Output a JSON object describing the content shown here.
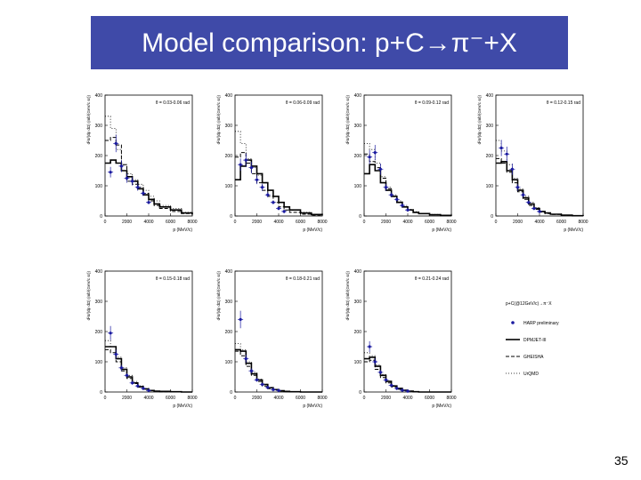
{
  "slide": {
    "title": "Model comparison: p+C→π⁻+X",
    "page_number": "35"
  },
  "colors": {
    "title_bg": "#3f4aa8",
    "title_text": "#ffffff",
    "data_points": "#1a1aa0",
    "lines": "#000000"
  },
  "legend": {
    "header": "p+C(@12GeV/c)→π⁻X",
    "entries": [
      {
        "label": "HARP preliminary",
        "style": "points"
      },
      {
        "label": "DPMJET-III",
        "style": "solid"
      },
      {
        "label": "GHEISHA",
        "style": "dashed"
      },
      {
        "label": "UrQMD",
        "style": "dotted"
      }
    ]
  },
  "chart_data": [
    {
      "type": "line",
      "panel": 1,
      "annotation": "θ = 0.03-0.06 rad",
      "xlabel": "p (MeV/c)",
      "ylabel": "d²σ/(dp dΩ) (mb/(GeV/c sr))",
      "xlim": [
        0,
        8000
      ],
      "ylim": [
        0,
        400
      ],
      "xticks": [
        0,
        2000,
        4000,
        6000,
        8000
      ],
      "yticks": [
        0,
        100,
        200,
        300,
        400
      ],
      "data_points": {
        "x": [
          500,
          1000,
          1500,
          2000,
          2500,
          3000,
          3500,
          4000
        ],
        "y": [
          145,
          240,
          165,
          125,
          115,
          95,
          75,
          45
        ]
      },
      "series": [
        {
          "name": "DPMJET-III",
          "x": [
            0,
            500,
            1000,
            1500,
            2000,
            2500,
            3000,
            3500,
            4000,
            4500,
            5000,
            6000,
            7000,
            8000
          ],
          "y": [
            175,
            185,
            175,
            150,
            130,
            115,
            90,
            70,
            55,
            40,
            30,
            20,
            10,
            5
          ]
        },
        {
          "name": "GHEISHA",
          "x": [
            0,
            500,
            1000,
            1500,
            2000,
            2500,
            3000,
            3500,
            4000,
            4500,
            5000,
            6000,
            7000,
            8000
          ],
          "y": [
            250,
            260,
            235,
            170,
            115,
            105,
            95,
            75,
            50,
            35,
            25,
            15,
            8,
            3
          ]
        },
        {
          "name": "UrQMD",
          "x": [
            0,
            500,
            1000,
            1500,
            2000,
            2500,
            3000,
            3500,
            4000,
            4500,
            5000,
            6000,
            7000,
            8000
          ],
          "y": [
            330,
            290,
            220,
            170,
            140,
            120,
            105,
            85,
            65,
            50,
            35,
            25,
            12,
            5
          ]
        }
      ]
    },
    {
      "type": "line",
      "panel": 2,
      "annotation": "θ = 0.06-0.09 rad",
      "xlabel": "p (MeV/c)",
      "ylabel": "d²σ/(dp dΩ) (mb/(GeV/c sr))",
      "xlim": [
        0,
        8000
      ],
      "ylim": [
        0,
        400
      ],
      "xticks": [
        0,
        2000,
        4000,
        6000,
        8000
      ],
      "yticks": [
        0,
        100,
        200,
        300,
        400
      ],
      "data_points": {
        "x": [
          500,
          1000,
          1500,
          2000,
          2500,
          3000,
          3500,
          4000,
          4500
        ],
        "y": [
          170,
          185,
          160,
          120,
          95,
          70,
          45,
          25,
          15
        ]
      },
      "series": [
        {
          "name": "DPMJET-III",
          "x": [
            0,
            500,
            1000,
            1500,
            2000,
            2500,
            3000,
            3500,
            4000,
            4500,
            5000,
            6000,
            7000,
            8000
          ],
          "y": [
            120,
            165,
            185,
            165,
            140,
            110,
            85,
            65,
            45,
            30,
            20,
            10,
            5,
            2
          ]
        },
        {
          "name": "GHEISHA",
          "x": [
            0,
            500,
            1000,
            1500,
            2000,
            2500,
            3000,
            3500,
            4000,
            4500,
            5000,
            6000,
            7000,
            8000
          ],
          "y": [
            195,
            210,
            175,
            140,
            110,
            85,
            65,
            45,
            30,
            20,
            12,
            6,
            3,
            1
          ]
        },
        {
          "name": "UrQMD",
          "x": [
            0,
            500,
            1000,
            1500,
            2000,
            2500,
            3000,
            3500,
            4000,
            4500,
            5000,
            6000,
            7000,
            8000
          ],
          "y": [
            280,
            240,
            190,
            160,
            135,
            110,
            85,
            65,
            45,
            30,
            20,
            12,
            6,
            2
          ]
        }
      ]
    },
    {
      "type": "line",
      "panel": 3,
      "annotation": "θ = 0.09-0.12 rad",
      "xlabel": "p (MeV/c)",
      "ylabel": "d²σ/(dp dΩ) (mb/(GeV/c sr))",
      "xlim": [
        0,
        8000
      ],
      "ylim": [
        0,
        400
      ],
      "xticks": [
        0,
        2000,
        4000,
        6000,
        8000
      ],
      "yticks": [
        0,
        100,
        200,
        300,
        400
      ],
      "data_points": {
        "x": [
          500,
          1000,
          1500,
          2000,
          2500,
          3000,
          3500,
          4000
        ],
        "y": [
          195,
          210,
          155,
          95,
          70,
          55,
          35,
          20
        ]
      },
      "series": [
        {
          "name": "DPMJET-III",
          "x": [
            0,
            500,
            1000,
            1500,
            2000,
            2500,
            3000,
            3500,
            4000,
            4500,
            5000,
            6000,
            7000,
            8000
          ],
          "y": [
            140,
            170,
            150,
            110,
            85,
            65,
            45,
            30,
            20,
            12,
            8,
            4,
            2,
            1
          ]
        },
        {
          "name": "GHEISHA",
          "x": [
            0,
            500,
            1000,
            1500,
            2000,
            2500,
            3000,
            3500,
            4000,
            4500,
            5000,
            6000,
            7000,
            8000
          ],
          "y": [
            205,
            180,
            160,
            125,
            90,
            65,
            45,
            30,
            20,
            12,
            8,
            4,
            2,
            1
          ]
        },
        {
          "name": "UrQMD",
          "x": [
            0,
            500,
            1000,
            1500,
            2000,
            2500,
            3000,
            3500,
            4000,
            4500,
            5000,
            6000,
            7000,
            8000
          ],
          "y": [
            240,
            220,
            175,
            130,
            95,
            70,
            50,
            35,
            22,
            14,
            9,
            5,
            2,
            1
          ]
        }
      ]
    },
    {
      "type": "line",
      "panel": 4,
      "annotation": "θ = 0.12-0.15 rad",
      "xlabel": "p (MeV/c)",
      "ylabel": "d²σ/(dp dΩ) (mb/(GeV/c sr))",
      "xlim": [
        0,
        8000
      ],
      "ylim": [
        0,
        400
      ],
      "xticks": [
        0,
        2000,
        4000,
        6000,
        8000
      ],
      "yticks": [
        0,
        100,
        200,
        300,
        400
      ],
      "data_points": {
        "x": [
          500,
          1000,
          1500,
          2000,
          2500,
          3000,
          3500,
          4000
        ],
        "y": [
          225,
          205,
          155,
          95,
          70,
          45,
          25,
          15
        ]
      },
      "series": [
        {
          "name": "DPMJET-III",
          "x": [
            0,
            500,
            1000,
            1500,
            2000,
            2500,
            3000,
            3500,
            4000,
            4500,
            5000,
            6000,
            7000,
            8000
          ],
          "y": [
            175,
            180,
            150,
            120,
            85,
            60,
            40,
            25,
            15,
            10,
            6,
            3,
            1,
            0
          ]
        },
        {
          "name": "GHEISHA",
          "x": [
            0,
            500,
            1000,
            1500,
            2000,
            2500,
            3000,
            3500,
            4000,
            4500,
            5000,
            6000,
            7000,
            8000
          ],
          "y": [
            190,
            175,
            145,
            110,
            80,
            55,
            35,
            22,
            13,
            8,
            5,
            2,
            1,
            0
          ]
        },
        {
          "name": "UrQMD",
          "x": [
            0,
            500,
            1000,
            1500,
            2000,
            2500,
            3000,
            3500,
            4000,
            4500,
            5000,
            6000,
            7000,
            8000
          ],
          "y": [
            250,
            215,
            170,
            125,
            90,
            65,
            45,
            28,
            16,
            10,
            6,
            3,
            1,
            0
          ]
        }
      ]
    },
    {
      "type": "line",
      "panel": 5,
      "annotation": "θ = 0.15-0.18 rad",
      "xlabel": "p (MeV/c)",
      "ylabel": "d²σ/(dp dΩ) (mb/(GeV/c sr))",
      "xlim": [
        0,
        8000
      ],
      "ylim": [
        0,
        400
      ],
      "xticks": [
        0,
        2000,
        4000,
        6000,
        8000
      ],
      "yticks": [
        0,
        100,
        200,
        300,
        400
      ],
      "data_points": {
        "x": [
          500,
          1000,
          1500,
          2000,
          2500,
          3000,
          3500,
          4000
        ],
        "y": [
          195,
          125,
          80,
          55,
          30,
          20,
          12,
          5
        ]
      },
      "series": [
        {
          "name": "DPMJET-III",
          "x": [
            0,
            500,
            1000,
            1500,
            2000,
            2500,
            3000,
            3500,
            4000,
            4500,
            5000,
            6000,
            7000,
            8000
          ],
          "y": [
            150,
            150,
            110,
            75,
            50,
            30,
            18,
            10,
            5,
            3,
            2,
            1,
            0,
            0
          ]
        },
        {
          "name": "GHEISHA",
          "x": [
            0,
            500,
            1000,
            1500,
            2000,
            2500,
            3000,
            3500,
            4000,
            4500,
            5000,
            6000,
            7000,
            8000
          ],
          "y": [
            140,
            130,
            100,
            70,
            45,
            28,
            16,
            9,
            5,
            3,
            1,
            0,
            0,
            0
          ]
        },
        {
          "name": "UrQMD",
          "x": [
            0,
            500,
            1000,
            1500,
            2000,
            2500,
            3000,
            3500,
            4000,
            4500,
            5000,
            6000,
            7000,
            8000
          ],
          "y": [
            170,
            150,
            115,
            80,
            55,
            35,
            20,
            12,
            6,
            3,
            2,
            1,
            0,
            0
          ]
        }
      ]
    },
    {
      "type": "line",
      "panel": 6,
      "annotation": "θ = 0.18-0.21 rad",
      "xlabel": "p (MeV/c)",
      "ylabel": "d²σ/(dp dΩ) (mb/(GeV/c sr))",
      "xlim": [
        0,
        8000
      ],
      "ylim": [
        0,
        400
      ],
      "xticks": [
        0,
        2000,
        4000,
        6000,
        8000
      ],
      "yticks": [
        0,
        100,
        200,
        300,
        400
      ],
      "data_points": {
        "x": [
          500,
          1000,
          1500,
          2000,
          2500,
          3000,
          3500,
          4000
        ],
        "y": [
          240,
          110,
          70,
          40,
          25,
          15,
          8,
          5
        ]
      },
      "series": [
        {
          "name": "DPMJET-III",
          "x": [
            0,
            500,
            1000,
            1500,
            2000,
            2500,
            3000,
            3500,
            4000,
            4500,
            5000,
            6000,
            7000,
            8000
          ],
          "y": [
            140,
            135,
            95,
            60,
            40,
            25,
            14,
            8,
            4,
            2,
            1,
            0,
            0,
            0
          ]
        },
        {
          "name": "GHEISHA",
          "x": [
            0,
            500,
            1000,
            1500,
            2000,
            2500,
            3000,
            3500,
            4000,
            4500,
            5000,
            6000,
            7000,
            8000
          ],
          "y": [
            135,
            120,
            85,
            55,
            35,
            20,
            11,
            6,
            3,
            1,
            0,
            0,
            0,
            0
          ]
        },
        {
          "name": "UrQMD",
          "x": [
            0,
            500,
            1000,
            1500,
            2000,
            2500,
            3000,
            3500,
            4000,
            4500,
            5000,
            6000,
            7000,
            8000
          ],
          "y": [
            160,
            140,
            100,
            65,
            42,
            26,
            15,
            8,
            4,
            2,
            1,
            0,
            0,
            0
          ]
        }
      ]
    },
    {
      "type": "line",
      "panel": 7,
      "annotation": "θ = 0.21-0.24 rad",
      "xlabel": "p (MeV/c)",
      "ylabel": "d²σ/(dp dΩ) (mb/(GeV/c sr))",
      "xlim": [
        0,
        8000
      ],
      "ylim": [
        0,
        400
      ],
      "xticks": [
        0,
        2000,
        4000,
        6000,
        8000
      ],
      "yticks": [
        0,
        100,
        200,
        300,
        400
      ],
      "data_points": {
        "x": [
          500,
          1000,
          1500,
          2000,
          2500,
          3000,
          3500,
          4000
        ],
        "y": [
          150,
          100,
          65,
          40,
          22,
          12,
          6,
          3
        ]
      },
      "series": [
        {
          "name": "DPMJET-III",
          "x": [
            0,
            500,
            1000,
            1500,
            2000,
            2500,
            3000,
            3500,
            4000,
            4500,
            5000,
            6000,
            7000,
            8000
          ],
          "y": [
            110,
            115,
            85,
            55,
            35,
            20,
            12,
            6,
            3,
            1,
            0,
            0,
            0,
            0
          ]
        },
        {
          "name": "GHEISHA",
          "x": [
            0,
            500,
            1000,
            1500,
            2000,
            2500,
            3000,
            3500,
            4000,
            4500,
            5000,
            6000,
            7000,
            8000
          ],
          "y": [
            100,
            105,
            75,
            48,
            30,
            17,
            9,
            5,
            2,
            1,
            0,
            0,
            0,
            0
          ]
        },
        {
          "name": "UrQMD",
          "x": [
            0,
            500,
            1000,
            1500,
            2000,
            2500,
            3000,
            3500,
            4000,
            4500,
            5000,
            6000,
            7000,
            8000
          ],
          "y": [
            130,
            120,
            90,
            58,
            36,
            21,
            12,
            6,
            3,
            1,
            0,
            0,
            0,
            0
          ]
        }
      ]
    }
  ]
}
